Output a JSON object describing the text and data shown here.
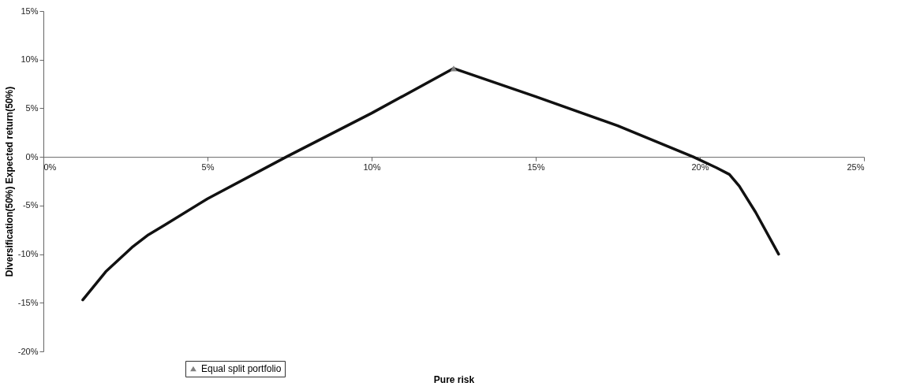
{
  "chart_data": {
    "type": "line",
    "xlabel": "Pure risk",
    "ylabel": "Diversification(50%) Expected return(50%)",
    "xlim": [
      0,
      25
    ],
    "ylim": [
      -20,
      15
    ],
    "xticks": [
      {
        "value": 0,
        "label": "0%"
      },
      {
        "value": 5,
        "label": "5%"
      },
      {
        "value": 10,
        "label": "10%"
      },
      {
        "value": 15,
        "label": "15%"
      },
      {
        "value": 20,
        "label": "20%"
      },
      {
        "value": 25,
        "label": "25%"
      }
    ],
    "yticks": [
      {
        "value": -20,
        "label": "-20%"
      },
      {
        "value": -15,
        "label": "-15%"
      },
      {
        "value": -10,
        "label": "-10%"
      },
      {
        "value": -5,
        "label": "-5%"
      },
      {
        "value": 0,
        "label": "0%"
      },
      {
        "value": 5,
        "label": "5%"
      },
      {
        "value": 10,
        "label": "10%"
      },
      {
        "value": 15,
        "label": "15%"
      }
    ],
    "grid": false,
    "legend": "bottom left",
    "line_style": "solid",
    "series": [
      {
        "color": "#111111",
        "marker": "none",
        "x": [
          1.2,
          1.9,
          2.7,
          3.2,
          3.7,
          5.0,
          7.4,
          10.0,
          12.5,
          15.0,
          17.5,
          19.8,
          20.5,
          20.9,
          21.2,
          21.7,
          22.4
        ],
        "values": [
          -14.7,
          -11.8,
          -9.3,
          -8.0,
          -7.0,
          -4.3,
          0.0,
          4.5,
          9.1,
          6.2,
          3.2,
          0.0,
          -1.1,
          -1.8,
          -3.0,
          -5.7,
          -10.0
        ]
      },
      {
        "type": "scatter",
        "name": "Equal split portfolio",
        "color": "#808080",
        "marker": "triangle",
        "x": [
          12.5
        ],
        "values": [
          9.1
        ]
      }
    ]
  }
}
